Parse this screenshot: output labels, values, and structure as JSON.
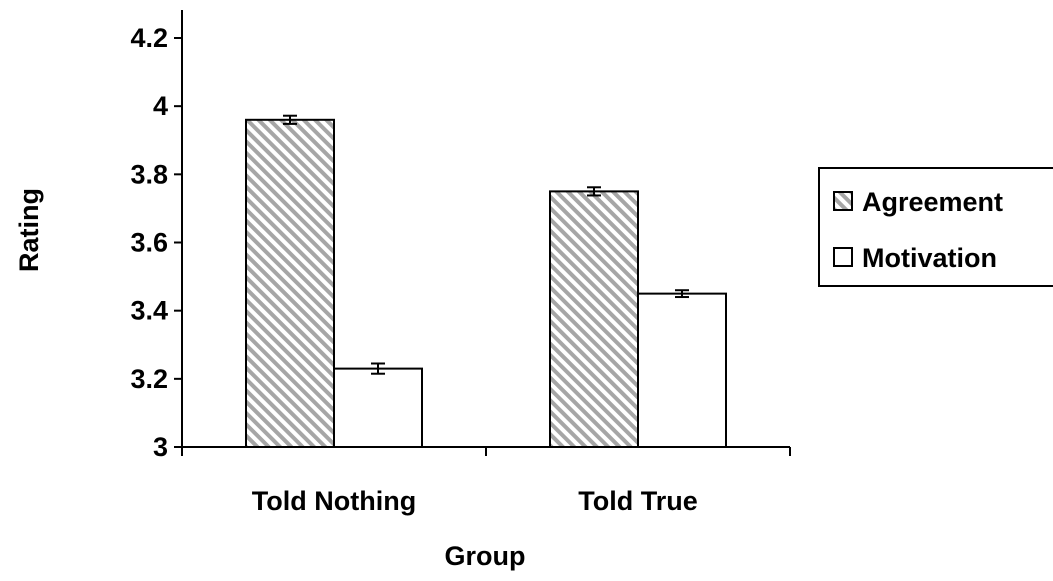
{
  "chart_data": {
    "type": "bar",
    "title": "",
    "xlabel": "Group",
    "ylabel": "Rating",
    "ylim": [
      3,
      4.2
    ],
    "yticks": [
      3,
      3.2,
      3.4,
      3.6,
      3.8,
      4,
      4.2
    ],
    "ytick_labels": [
      "3",
      "3.2",
      "3.4",
      "3.6",
      "3.8",
      "4",
      "4.2"
    ],
    "categories": [
      "Told Nothing",
      "Told True"
    ],
    "series": [
      {
        "name": "Agreement",
        "values": [
          3.96,
          3.75
        ],
        "errors": [
          0.012,
          0.012
        ],
        "fill": "hatched-gray"
      },
      {
        "name": "Motivation",
        "values": [
          3.23,
          3.45
        ],
        "errors": [
          0.015,
          0.01
        ],
        "fill": "white"
      }
    ],
    "grid": false,
    "legend_position": "right",
    "colors": {
      "hatch_light": "#ffffff",
      "hatch_dark": "#a6a6a6",
      "bar_edge": "#000000",
      "plain": "#ffffff"
    }
  }
}
